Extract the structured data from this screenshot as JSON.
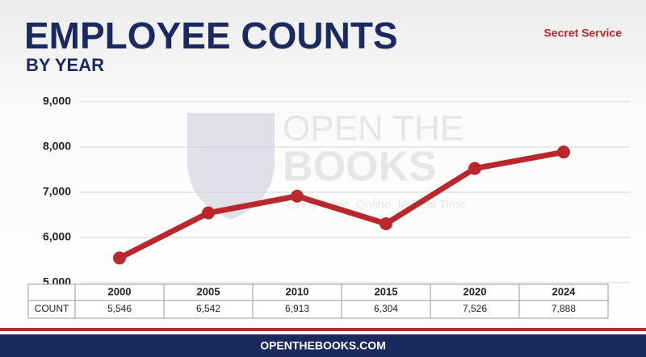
{
  "chart_data": {
    "type": "line",
    "title": "EMPLOYEE COUNTS",
    "subtitle": "BY YEAR",
    "annotation": "Secret Service",
    "footer": "OPENTHEBOOKS.COM",
    "watermark": {
      "line1": "OPEN THE",
      "line2": "BOOKS",
      "tagline": "Every Dime. Online. In Real Time."
    },
    "row_label": "COUNT",
    "categories": [
      "2000",
      "2005",
      "2010",
      "2015",
      "2020",
      "2024"
    ],
    "series": [
      {
        "name": "COUNT",
        "color": "#b8282c",
        "values": [
          5546,
          6542,
          6913,
          6304,
          7526,
          7888
        ],
        "value_labels": [
          "5,546",
          "6,542",
          "6,913",
          "6,304",
          "7,526",
          "7,888"
        ]
      }
    ],
    "ylim": [
      5000,
      9000
    ],
    "yticks": [
      {
        "value": 5000,
        "label": "5,000"
      },
      {
        "value": 6000,
        "label": "6,000"
      },
      {
        "value": 7000,
        "label": "7,000"
      },
      {
        "value": 8000,
        "label": "8,000"
      },
      {
        "value": 9000,
        "label": "9,000"
      }
    ],
    "grid": true
  }
}
